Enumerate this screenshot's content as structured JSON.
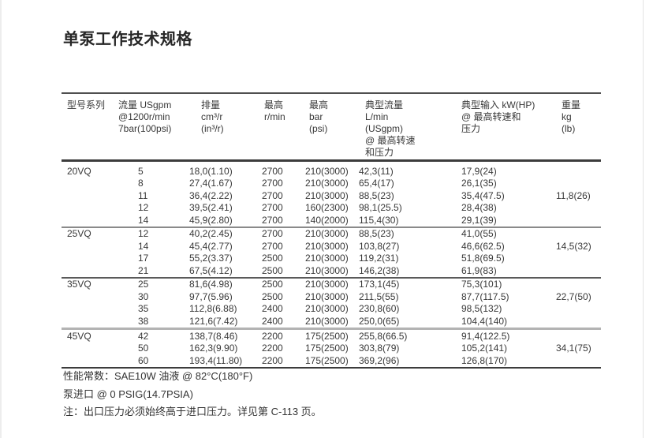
{
  "page_title": "单泵工作技术规格",
  "table": {
    "headers": [
      {
        "lines": [
          "型号系列"
        ]
      },
      {
        "lines": [
          "流量 USgpm",
          "@1200r/min",
          "7bar(100psi)"
        ]
      },
      {
        "lines": [
          "排量",
          "cm³/r",
          "(in³/r)"
        ]
      },
      {
        "lines": [
          "最高",
          "r/min"
        ]
      },
      {
        "lines": [
          "最高",
          "bar",
          "(psi)"
        ]
      },
      {
        "lines": [
          "典型流量",
          "L/min",
          "(USgpm)",
          "@ 最高转速",
          "和压力"
        ]
      },
      {
        "lines": [
          "典型输入 kW(HP)",
          "@ 最高转速和",
          "压力"
        ]
      },
      {
        "lines": [
          "重量",
          "kg",
          "(lb)"
        ]
      }
    ],
    "sections": [
      {
        "model": "20VQ",
        "weight": "11,8(26)",
        "weight_row": 2,
        "rows": [
          [
            "5",
            "18,0(1.10)",
            "2700",
            "210(3000)",
            "42,3(11)",
            "17,9(24)"
          ],
          [
            "8",
            "27,4(1.67)",
            "2700",
            "210(3000)",
            "65,4(17)",
            "26,1(35)"
          ],
          [
            "11",
            "36,4(2.22)",
            "2700",
            "210(3000)",
            "88,5(23)",
            "35,4(47.5)"
          ],
          [
            "12",
            "39,5(2.41)",
            "2700",
            "160(2300)",
            "98,1(25.5)",
            "28,4(38)"
          ],
          [
            "14",
            "45,9(2.80)",
            "2700",
            "140(2000)",
            "115,4(30)",
            "29,1(39)"
          ]
        ]
      },
      {
        "model": "25VQ",
        "weight": "14,5(32)",
        "weight_row": 1,
        "rows": [
          [
            "12",
            "40,2(2.45)",
            "2700",
            "210(3000)",
            "88,5(23)",
            "41,0(55)"
          ],
          [
            "14",
            "45,4(2.77)",
            "2700",
            "210(3000)",
            "103,8(27)",
            "46,6(62.5)"
          ],
          [
            "17",
            "55,2(3.37)",
            "2500",
            "210(3000)",
            "119,2(31)",
            "51,8(69.5)"
          ],
          [
            "21",
            "67,5(4.12)",
            "2500",
            "210(3000)",
            "146,2(38)",
            "61,9(83)"
          ]
        ]
      },
      {
        "model": "35VQ",
        "weight": "22,7(50)",
        "weight_row": 1,
        "rows": [
          [
            "25",
            "81,6(4.98)",
            "2500",
            "210(3000)",
            "173,1(45)",
            "75,3(101)"
          ],
          [
            "30",
            "97,7(5.96)",
            "2500",
            "210(3000)",
            "211,5(55)",
            "87,7(117.5)"
          ],
          [
            "35",
            "112,8(6.88)",
            "2400",
            "210(3000)",
            "230,8(60)",
            "98,5(132)"
          ],
          [
            "38",
            "121,6(7.42)",
            "2400",
            "210(3000)",
            "250,0(65)",
            "104,4(140)"
          ]
        ]
      },
      {
        "model": "45VQ",
        "weight": "34,1(75)",
        "weight_row": 1,
        "rows": [
          [
            "42",
            "138,7(8.46)",
            "2200",
            "175(2500)",
            "255,8(66.5)",
            "91,4(122.5)"
          ],
          [
            "50",
            "162,3(9.90)",
            "2200",
            "175(2500)",
            "303,8(79)",
            "105,2(141)"
          ],
          [
            "60",
            "193,4(11.80)",
            "2200",
            "175(2500)",
            "369,2(96)",
            "126,8(170)"
          ]
        ]
      }
    ]
  },
  "notes": [
    "性能常数：SAE10W 油液 @ 82°C(180°F)",
    "泵进口 @ 0 PSIG(14.7PSIA)",
    "注：出口压力必须始终高于进口压力。详见第 C-113 页。"
  ]
}
